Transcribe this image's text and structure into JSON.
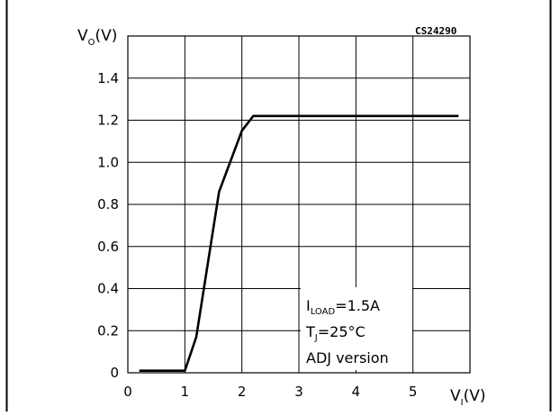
{
  "chart_data": {
    "type": "line",
    "code": "CS24290",
    "ylabel": {
      "main": "V",
      "sub": "O",
      "unit": "(V)"
    },
    "xlabel": {
      "main": "V",
      "sub": "I",
      "unit": "(V)"
    },
    "xlim": [
      0,
      6
    ],
    "ylim": [
      0,
      1.6
    ],
    "x_ticks": [
      "0",
      "1",
      "2",
      "3",
      "4",
      "5"
    ],
    "y_ticks": [
      "0",
      "0.2",
      "0.4",
      "0.6",
      "0.8",
      "1.0",
      "1.2",
      "1.4"
    ],
    "grid": true,
    "series": [
      {
        "x": [
          0.2,
          1.0,
          1.2,
          1.6,
          2.0,
          2.2,
          5.8
        ],
        "y": [
          0.01,
          0.01,
          0.17,
          0.86,
          1.15,
          1.22,
          1.22
        ]
      }
    ],
    "annotations": {
      "load": {
        "main": "I",
        "sub": "LOAD",
        "rest": "=1.5A"
      },
      "temp": {
        "main": "T",
        "sub": "J",
        "rest": "=25°C"
      },
      "version": "ADJ version"
    }
  }
}
